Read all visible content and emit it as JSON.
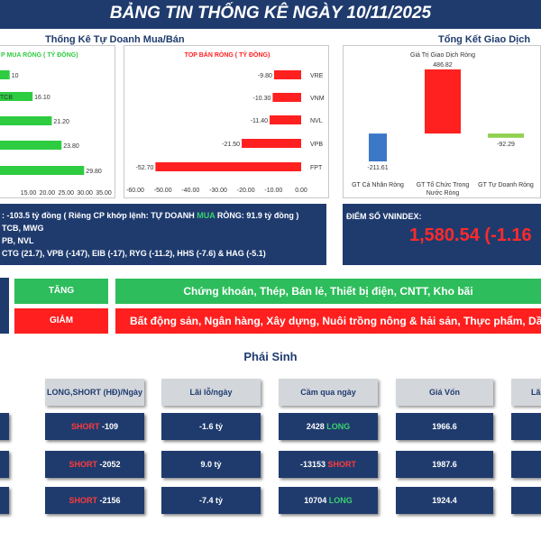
{
  "header": {
    "title": "BẢNG TIN THỐNG KÊ NGÀY 10/11/2025"
  },
  "colors": {
    "navy": "#1f3b6e",
    "green": "#2ecc40",
    "red": "#ff2020",
    "blue": "#3c78c8"
  },
  "chart_data": [
    {
      "type": "bar",
      "orientation": "horizontal",
      "panel_title": "Thống Kê Tự Doanh Mua/Bán",
      "title": "P MUA RÒNG ( TỶ ĐỒNG)",
      "categories": [
        "",
        "TCB",
        "",
        "",
        ""
      ],
      "values": [
        10,
        16.1,
        21.2,
        23.8,
        29.8
      ],
      "value_labels": [
        "10",
        "16.10",
        "21.20",
        "23.80",
        "29.80"
      ],
      "xticks": [
        "15.00",
        "20.00",
        "25.00",
        "30.00",
        "35.00"
      ],
      "xlim": [
        0,
        35
      ],
      "color": "#2ecc40"
    },
    {
      "type": "bar",
      "orientation": "horizontal",
      "title": "TOP BÁN RÒNG ( TỶ ĐỒNG)",
      "categories": [
        "VRE",
        "VNM",
        "NVL",
        "VPB",
        "FPT"
      ],
      "values": [
        -9.8,
        -10.3,
        -11.4,
        -21.5,
        -52.7
      ],
      "value_labels": [
        "-9.80",
        "-10.30",
        "-11.40",
        "-21.50",
        "-52.70"
      ],
      "xticks": [
        "-60.00",
        "-50.00",
        "-40.00",
        "-30.00",
        "-20.00",
        "-10.00",
        "0.00"
      ],
      "xlim": [
        -60,
        0
      ],
      "color": "#ff2020"
    },
    {
      "type": "bar",
      "orientation": "waterfall",
      "panel_title": "Tổng Kết Giao Dịch",
      "title": "Giá Trị Giao Dịch Ròng",
      "categories": [
        "GT Cá Nhân Ròng",
        "GT Tổ Chức Trong Nước Ròng",
        "GT Tự Doanh Ròng"
      ],
      "values": [
        -211.61,
        486.82,
        -92.29
      ],
      "value_labels": [
        "-211.61",
        "486.82",
        "-92.29"
      ],
      "colors": [
        "#3c78c8",
        "#ff2020",
        "#8fd14f"
      ]
    }
  ],
  "summary": {
    "line1_pre": ": -103.5 tỷ đồng ( Riêng CP khớp lệnh: TỰ DOANH ",
    "line1_buy": "MUA",
    "line1_post": " RÒNG: 91.9 tỷ đồng )",
    "line2": "TCB, MWG",
    "line3": "PB, NVL",
    "line4": "CTG (21.7), VPB (-147), EIB (-17), RYG (-11.2), HHS (-7.6) & HAG (-5.1)"
  },
  "vnindex": {
    "label": "ĐIỂM SỐ VNINDEX:",
    "value": "1,580.54 (-1.16"
  },
  "sectors": {
    "up_label": "TĂNG",
    "up_value": "Chứng khoán, Thép, Bán lẻ, Thiết bị điện, CNTT, Kho bãi",
    "down_label": "GIẢM",
    "down_value": "Bất động sản, Ngân hàng, Xây dựng, Nuôi trồng nông & hải sản, Thực phẩm, Dầu khí, Viễn"
  },
  "derivatives": {
    "title": "Phái Sinh",
    "headers": [
      "LONG,SHORT (HĐ)/Ngày",
      "Lãi lỗ/ngày",
      "Cầm qua ngày",
      "Giá Vốn",
      "Lãi"
    ],
    "rows": [
      {
        "side": "SHORT",
        "qty": "-109",
        "pnl": "-1.6 tỷ",
        "carry_qty": "2428",
        "carry_side": "LONG",
        "cost": "1966.6"
      },
      {
        "side": "SHORT",
        "qty": "-2052",
        "pnl": "9.0 tỷ",
        "carry_qty": "-13153",
        "carry_side": "SHORT",
        "cost": "1987.6"
      },
      {
        "side": "SHORT",
        "qty": "-2156",
        "pnl": "-7.4 tỷ",
        "carry_qty": "10704",
        "carry_side": "LONG",
        "cost": "1924.4"
      }
    ]
  }
}
